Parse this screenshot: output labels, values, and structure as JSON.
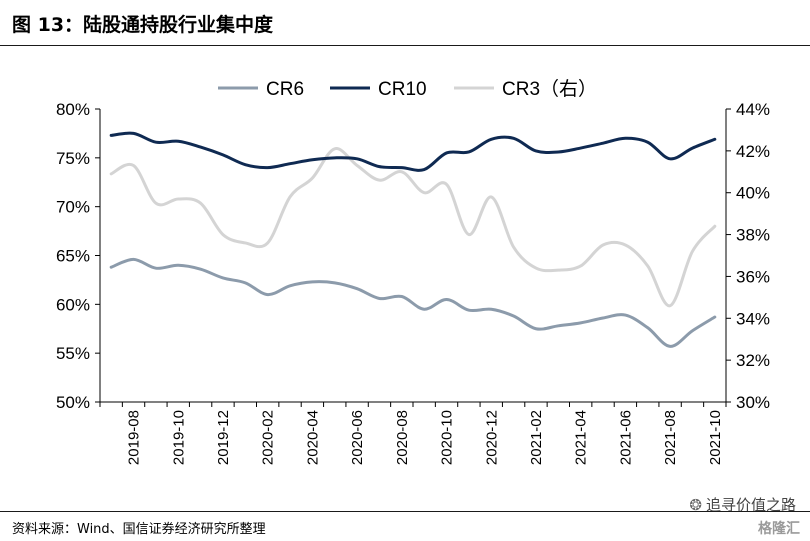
{
  "header": {
    "title": "图 13：陆股通持股行业集中度"
  },
  "footer": {
    "source": "资料来源：Wind、国信证券经济研究所整理"
  },
  "watermark": {
    "account": "追寻价值之路",
    "brand": "格隆汇"
  },
  "chart_data": {
    "type": "line",
    "x": [
      "2019-07",
      "2019-08",
      "2019-09",
      "2019-10",
      "2019-11",
      "2019-12",
      "2020-01",
      "2020-02",
      "2020-03",
      "2020-04",
      "2020-05",
      "2020-06",
      "2020-07",
      "2020-08",
      "2020-09",
      "2020-10",
      "2020-11",
      "2020-12",
      "2021-01",
      "2021-02",
      "2021-03",
      "2021-04",
      "2021-05",
      "2021-06",
      "2021-07",
      "2021-08",
      "2021-09",
      "2021-10"
    ],
    "x_tick_labels": [
      "2019-08",
      "2019-10",
      "2019-12",
      "2020-02",
      "2020-04",
      "2020-06",
      "2020-08",
      "2020-10",
      "2020-12",
      "2021-02",
      "2021-04",
      "2021-06",
      "2021-08",
      "2021-10"
    ],
    "series": [
      {
        "name": "CR6",
        "axis": "left",
        "color": "#8c9bab",
        "values": [
          63.8,
          64.6,
          63.7,
          64.0,
          63.6,
          62.7,
          62.2,
          61.0,
          61.9,
          62.3,
          62.2,
          61.6,
          60.6,
          60.8,
          59.5,
          60.5,
          59.4,
          59.5,
          58.8,
          57.5,
          57.8,
          58.1,
          58.6,
          58.9,
          57.6,
          55.7,
          57.3,
          58.7
        ]
      },
      {
        "name": "CR10",
        "axis": "left",
        "color": "#0f2a52",
        "values": [
          77.3,
          77.5,
          76.6,
          76.7,
          76.1,
          75.3,
          74.3,
          74.0,
          74.4,
          74.8,
          75.0,
          74.9,
          74.1,
          74.0,
          73.8,
          75.5,
          75.6,
          76.9,
          77.0,
          75.7,
          75.6,
          76.0,
          76.5,
          77.0,
          76.6,
          74.9,
          76.0,
          76.9
        ]
      },
      {
        "name": "CR3（右）",
        "axis": "right",
        "color": "#d4d4d4",
        "values": [
          40.9,
          41.3,
          39.5,
          39.7,
          39.5,
          38.0,
          37.6,
          37.6,
          39.8,
          40.7,
          42.1,
          41.3,
          40.6,
          41.0,
          40.0,
          40.4,
          38.0,
          39.8,
          37.4,
          36.4,
          36.3,
          36.5,
          37.5,
          37.5,
          36.5,
          34.6,
          37.2,
          38.4
        ]
      }
    ],
    "ylim": [
      50,
      80
    ],
    "yticks": [
      "50%",
      "55%",
      "60%",
      "65%",
      "70%",
      "75%",
      "80%"
    ],
    "y2lim": [
      30,
      44
    ],
    "y2ticks": [
      "30%",
      "32%",
      "34%",
      "36%",
      "38%",
      "40%",
      "42%",
      "44%"
    ],
    "legend_position": "top",
    "grid": false
  }
}
